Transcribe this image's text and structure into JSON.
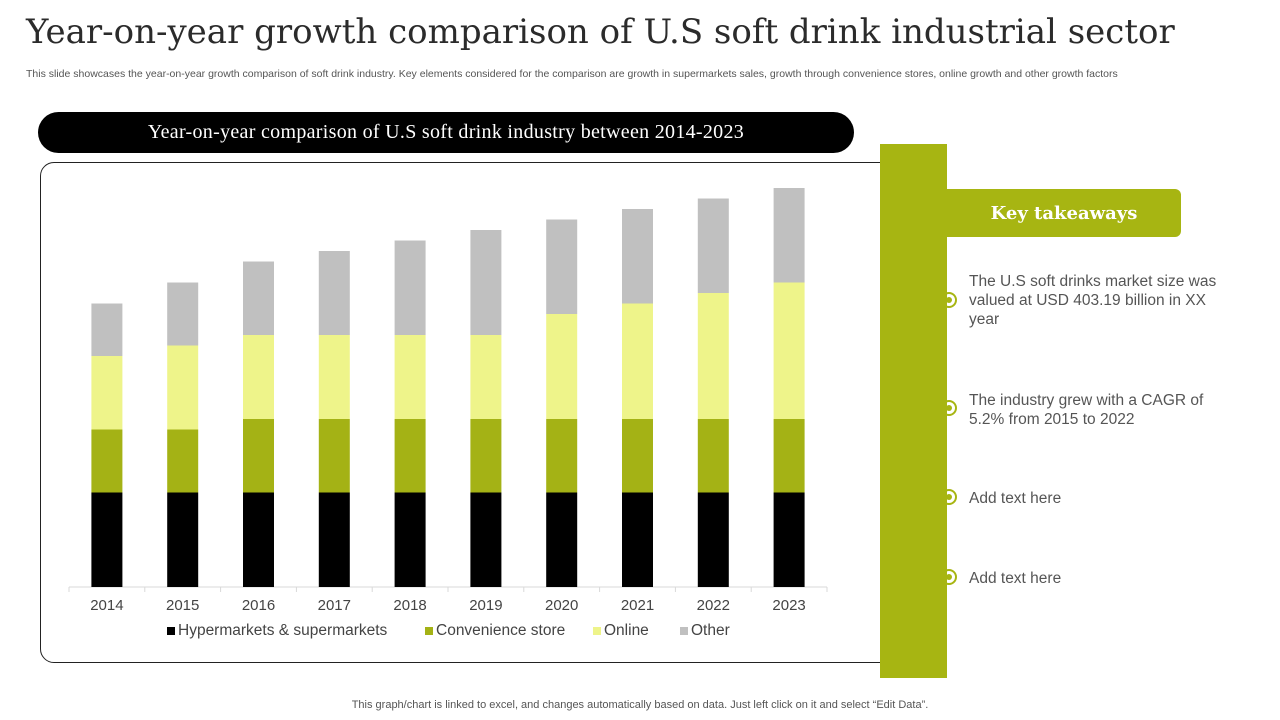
{
  "page": {
    "title": "Year-on-year growth comparison of U.S soft drink industrial sector",
    "subtitle": "This slide showcases the year-on-year growth comparison of soft drink industry. Key elements considered for the comparison are growth in supermarkets sales, growth through convenience stores, online growth and other growth factors",
    "footer": "This graph/chart is linked to excel, and changes automatically based on data. Just left click on it and select “Edit Data”."
  },
  "chart_header": "Year-on-year comparison of U.S soft drink industry between 2014-2023",
  "takeaways": {
    "heading": "Key takeaways",
    "items": [
      "The U.S soft drinks market size was valued at USD 403.19 billion in XX year",
      "The industry grew with a CAGR of 5.2% from 2015 to 2022",
      "Add text here",
      "Add text here"
    ]
  },
  "colors": {
    "accent": "#a7b512",
    "hypermarkets": "#000000",
    "convenience": "#a4b215",
    "online": "#eef48a",
    "other": "#c0c0c0"
  },
  "chart_data": {
    "type": "bar",
    "stacked": true,
    "title": "Year-on-year comparison of U.S soft drink industry between 2014-2023",
    "categories": [
      "2014",
      "2015",
      "2016",
      "2017",
      "2018",
      "2019",
      "2020",
      "2021",
      "2022",
      "2023"
    ],
    "series": [
      {
        "name": "Hypermarkets & supermarkets",
        "color": "#000000",
        "values": [
          9,
          9,
          9,
          9,
          9,
          9,
          9,
          9,
          9,
          9
        ]
      },
      {
        "name": "Convenience store",
        "color": "#a4b215",
        "values": [
          6,
          6,
          7,
          7,
          7,
          7,
          7,
          7,
          7,
          7
        ]
      },
      {
        "name": "Online",
        "color": "#eef48a",
        "values": [
          7,
          8,
          8,
          8,
          8,
          8,
          10,
          11,
          12,
          13
        ]
      },
      {
        "name": "Other",
        "color": "#c0c0c0",
        "values": [
          5,
          6,
          7,
          8,
          9,
          10,
          9,
          9,
          9,
          9
        ]
      }
    ],
    "ylim": [
      0,
      40
    ],
    "legend_position": "bottom",
    "grid": false
  }
}
